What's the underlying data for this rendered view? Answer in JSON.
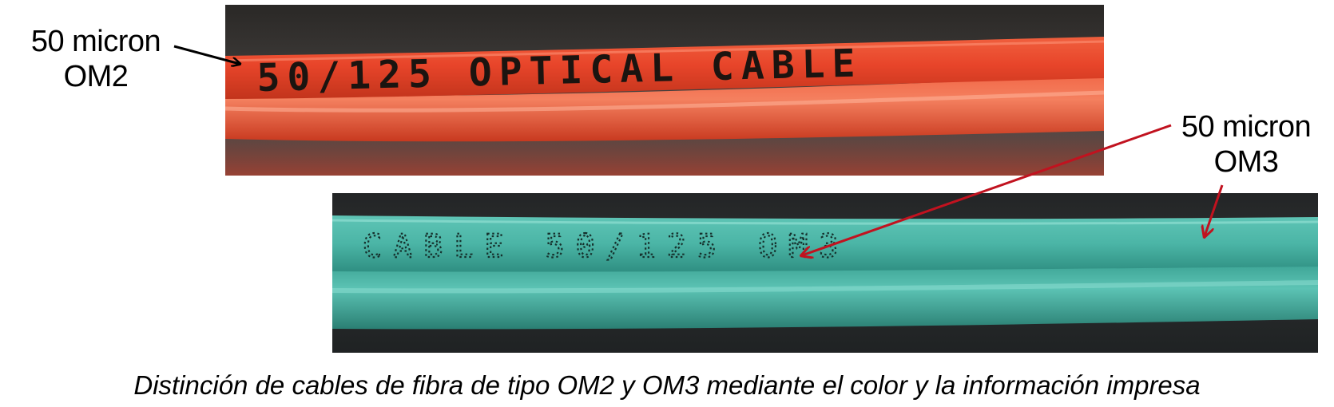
{
  "photos": {
    "om2": {
      "printed_text": "50/125 OPTICAL CABLE",
      "cable_color": "#e8452a"
    },
    "om3": {
      "printed_text": "CABLE 50/125 OM3",
      "cable_color": "#4bb5a6"
    }
  },
  "callouts": {
    "om2": {
      "line1": "50 micron",
      "line2": "OM2",
      "arrow_color": "#000000"
    },
    "om3": {
      "line1": "50 micron",
      "line2": "OM3",
      "arrow_color": "#c1121f"
    }
  },
  "caption": "Distinción de cables de fibra de tipo OM2 y OM3 mediante el color y la información impresa"
}
